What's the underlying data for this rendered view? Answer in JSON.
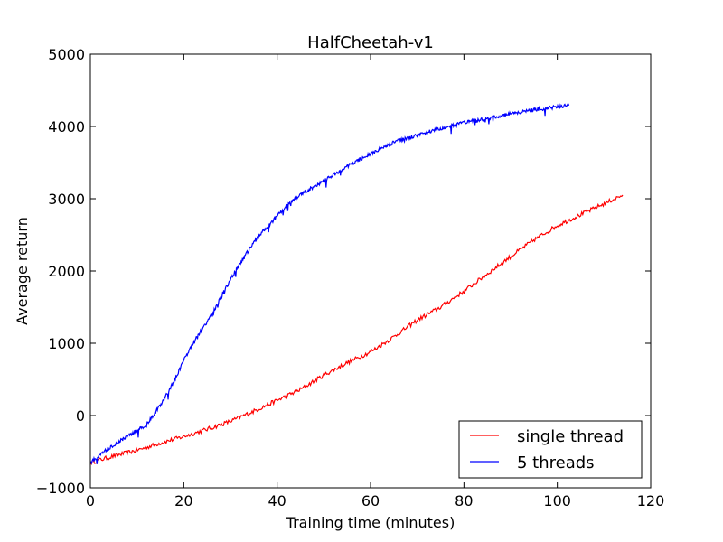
{
  "chart_data": {
    "type": "line",
    "title": "HalfCheetah-v1",
    "xlabel": "Training time (minutes)",
    "ylabel": "Average return",
    "xlim": [
      0,
      120
    ],
    "ylim": [
      -1000,
      5000
    ],
    "xticks": [
      0,
      20,
      40,
      60,
      80,
      100,
      120
    ],
    "yticks": [
      -1000,
      0,
      1000,
      2000,
      3000,
      4000,
      5000
    ],
    "xtick_labels": [
      "0",
      "20",
      "40",
      "60",
      "80",
      "100",
      "120"
    ],
    "ytick_labels": [
      "−1000",
      "0",
      "1000",
      "2000",
      "3000",
      "4000",
      "5000"
    ],
    "grid": false,
    "legend_position": "lower-right",
    "series": [
      {
        "name": "single thread",
        "color": "#ff0000",
        "x": [
          0,
          5,
          10,
          15,
          20,
          25,
          30,
          35,
          40,
          45,
          50,
          55,
          60,
          65,
          70,
          75,
          80,
          85,
          90,
          95,
          100,
          105,
          110,
          114
        ],
        "y": [
          -650,
          -560,
          -480,
          -380,
          -290,
          -190,
          -80,
          60,
          210,
          360,
          560,
          730,
          880,
          1090,
          1320,
          1500,
          1720,
          1960,
          2200,
          2430,
          2630,
          2780,
          2930,
          3050
        ]
      },
      {
        "name": "5 threads",
        "color": "#0000ff",
        "x": [
          0,
          4,
          8,
          12,
          14,
          16,
          18,
          20,
          22,
          24,
          26,
          28,
          30,
          32,
          34,
          36,
          38,
          40,
          42,
          45,
          50,
          55,
          60,
          65,
          70,
          75,
          80,
          85,
          90,
          95,
          100,
          102.5
        ],
        "y": [
          -650,
          -450,
          -280,
          -130,
          50,
          250,
          480,
          760,
          1000,
          1200,
          1400,
          1640,
          1880,
          2090,
          2300,
          2480,
          2620,
          2760,
          2900,
          3060,
          3250,
          3450,
          3620,
          3780,
          3880,
          3970,
          4050,
          4110,
          4180,
          4230,
          4270,
          4290
        ]
      }
    ]
  }
}
